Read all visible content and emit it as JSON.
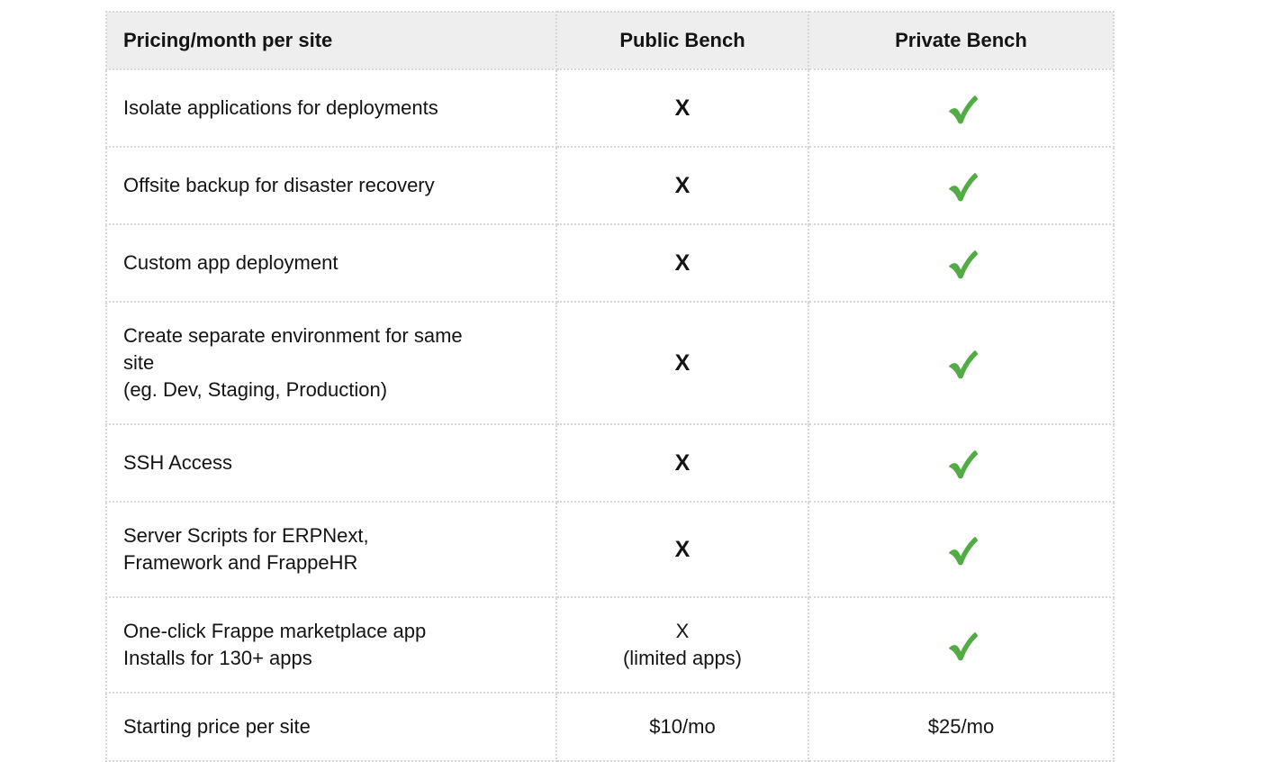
{
  "colors": {
    "check_green": "#52ab44",
    "header_bg": "#eeeeee",
    "border": "#d6d6d6",
    "text": "#141414",
    "page_bg": "#ffffff"
  },
  "glyphs": {
    "cross": "X",
    "check_icon_name": "green-check"
  },
  "table": {
    "header": {
      "feature_label": "Pricing/month per site",
      "public_label": "Public Bench",
      "private_label": "Private Bench"
    },
    "rows": [
      {
        "feature_lines": [
          "Isolate applications for deployments"
        ],
        "public": {
          "kind": "cross"
        },
        "private": {
          "kind": "check"
        }
      },
      {
        "feature_lines": [
          "Offsite backup for disaster recovery"
        ],
        "public": {
          "kind": "cross"
        },
        "private": {
          "kind": "check"
        }
      },
      {
        "feature_lines": [
          "Custom app deployment"
        ],
        "public": {
          "kind": "cross"
        },
        "private": {
          "kind": "check"
        }
      },
      {
        "feature_lines": [
          "Create separate environment for same",
          "site",
          "(eg. Dev, Staging, Production)"
        ],
        "public": {
          "kind": "cross"
        },
        "private": {
          "kind": "check"
        }
      },
      {
        "feature_lines": [
          "SSH Access"
        ],
        "public": {
          "kind": "cross"
        },
        "private": {
          "kind": "check"
        }
      },
      {
        "feature_lines": [
          "Server Scripts for ERPNext,",
          "Framework and FrappeHR"
        ],
        "public": {
          "kind": "cross"
        },
        "private": {
          "kind": "check"
        }
      },
      {
        "feature_lines": [
          "One-click Frappe marketplace app",
          "Installs for 130+ apps"
        ],
        "public": {
          "kind": "cross-plain",
          "note": "(limited apps)"
        },
        "private": {
          "kind": "check"
        }
      },
      {
        "feature_lines": [
          "Starting price per site"
        ],
        "public": {
          "kind": "text",
          "value": "$10/mo"
        },
        "private": {
          "kind": "text",
          "value": "$25/mo"
        }
      }
    ]
  }
}
